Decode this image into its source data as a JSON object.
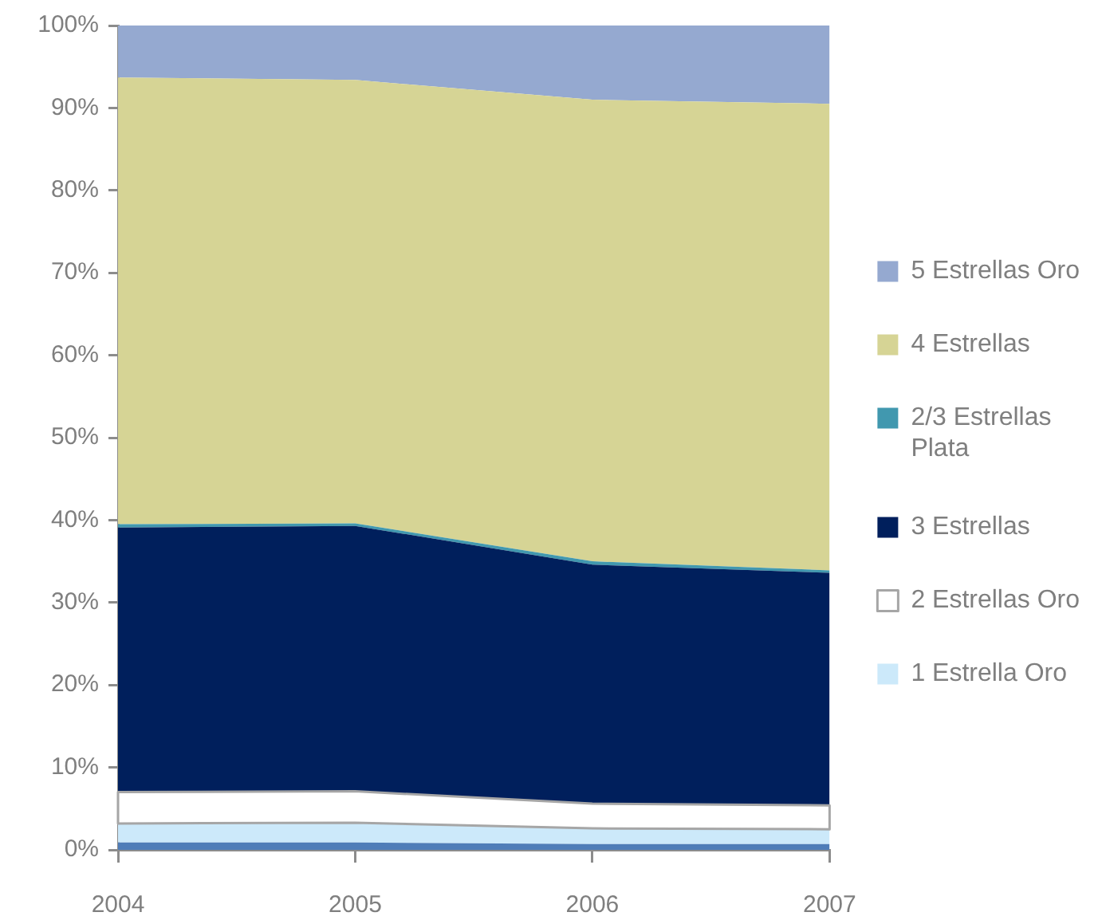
{
  "chart_data": {
    "type": "area",
    "stacked": true,
    "categories": [
      "2004",
      "2005",
      "2006",
      "2007"
    ],
    "series": [
      {
        "color": "#4f7db8",
        "values": [
          0.9,
          0.9,
          0.7,
          0.7
        ]
      },
      {
        "name": "1 Estrella Oro",
        "color": "#cce9fa",
        "values": [
          2.3,
          2.4,
          1.9,
          1.8
        ]
      },
      {
        "name": "2 Estrellas Oro",
        "color": "#ffffff",
        "values": [
          3.8,
          3.8,
          3.0,
          2.9
        ]
      },
      {
        "name": "3 Estrellas",
        "color": "#001f5c",
        "values": [
          32.1,
          32.2,
          29.0,
          28.2
        ]
      },
      {
        "name": "2/3 Estrellas Plata",
        "color": "#4198af",
        "values": [
          0.4,
          0.3,
          0.4,
          0.3
        ]
      },
      {
        "name": "4 Estrellas",
        "color": "#d6d495",
        "values": [
          54.2,
          53.8,
          56.0,
          56.6
        ]
      },
      {
        "name": "5 Estrellas Oro",
        "color": "#95a9d0",
        "values": [
          6.3,
          6.6,
          9.0,
          9.5
        ]
      }
    ],
    "ylim": [
      0,
      100
    ],
    "yticks": [
      {
        "value": 0,
        "label": "0%"
      },
      {
        "value": 10,
        "label": "10%"
      },
      {
        "value": 20,
        "label": "20%"
      },
      {
        "value": 30,
        "label": "30%"
      },
      {
        "value": 40,
        "label": "40%"
      },
      {
        "value": 50,
        "label": "50%"
      },
      {
        "value": 60,
        "label": "60%"
      },
      {
        "value": 70,
        "label": "70%"
      },
      {
        "value": 80,
        "label": "80%"
      },
      {
        "value": 90,
        "label": "90%"
      },
      {
        "value": 100,
        "label": "100%"
      }
    ],
    "grid": false,
    "legend": "right"
  }
}
